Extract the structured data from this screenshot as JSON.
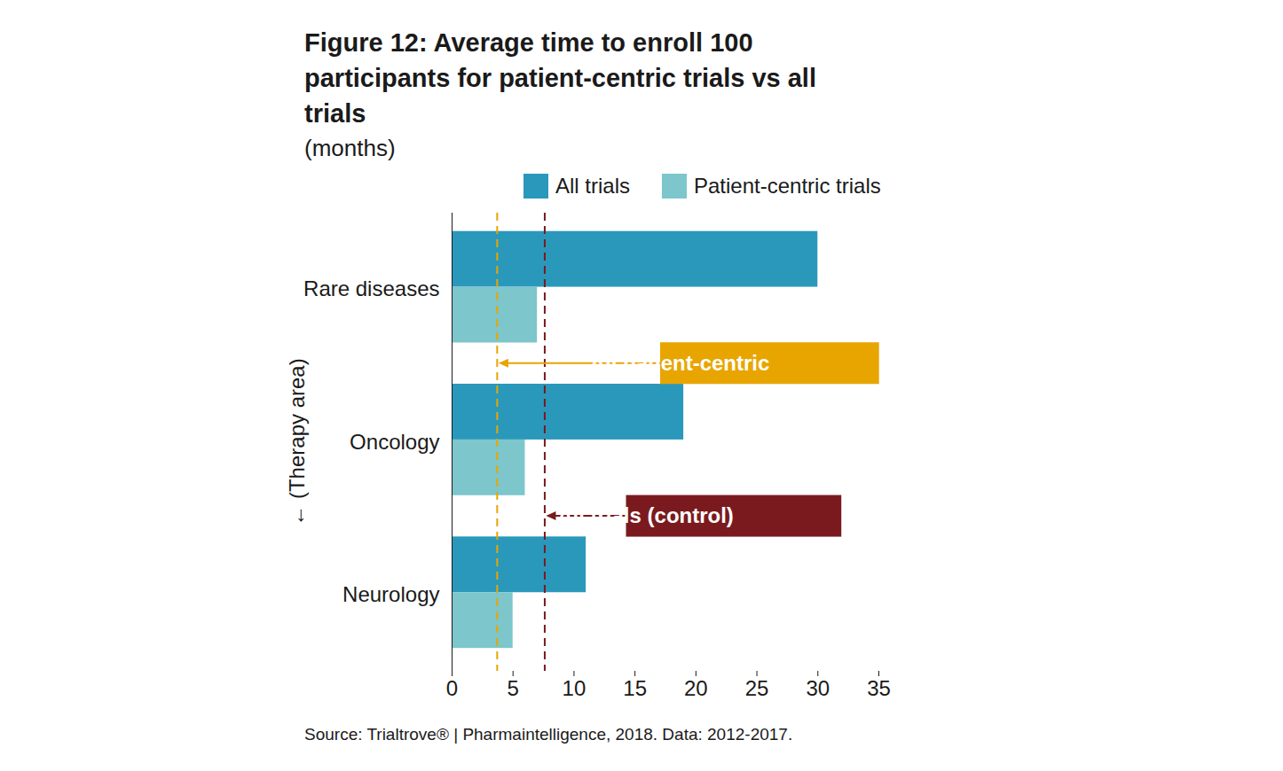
{
  "chart_data": {
    "type": "bar",
    "orientation": "horizontal",
    "title": "Figure 12: Average time to enroll 100 participants for patient-centric trials vs all trials",
    "subtitle": "(months)",
    "ylabel": "(Therapy area)",
    "source": "Source: Trialtrove® | Pharmaintelligence, 2018. Data: 2012-2017.",
    "categories": [
      "Rare diseases",
      "Oncology",
      "Neurology"
    ],
    "series": [
      {
        "name": "All trials",
        "color": "#2a98bb",
        "values": [
          30,
          19,
          11
        ]
      },
      {
        "name": "Patient-centric trials",
        "color": "#7cc6cc",
        "values": [
          7,
          6,
          5
        ]
      }
    ],
    "xlim": [
      0,
      35
    ],
    "xticks": [
      0,
      5,
      10,
      15,
      20,
      25,
      30,
      35
    ],
    "grid": false,
    "legend": "top",
    "annotations": [
      {
        "text": "All patient-centric",
        "value": 3.7,
        "color": "#e8a500"
      },
      {
        "text": "All trials (control)",
        "value": 7.6,
        "color": "#7a1a1e"
      }
    ]
  }
}
